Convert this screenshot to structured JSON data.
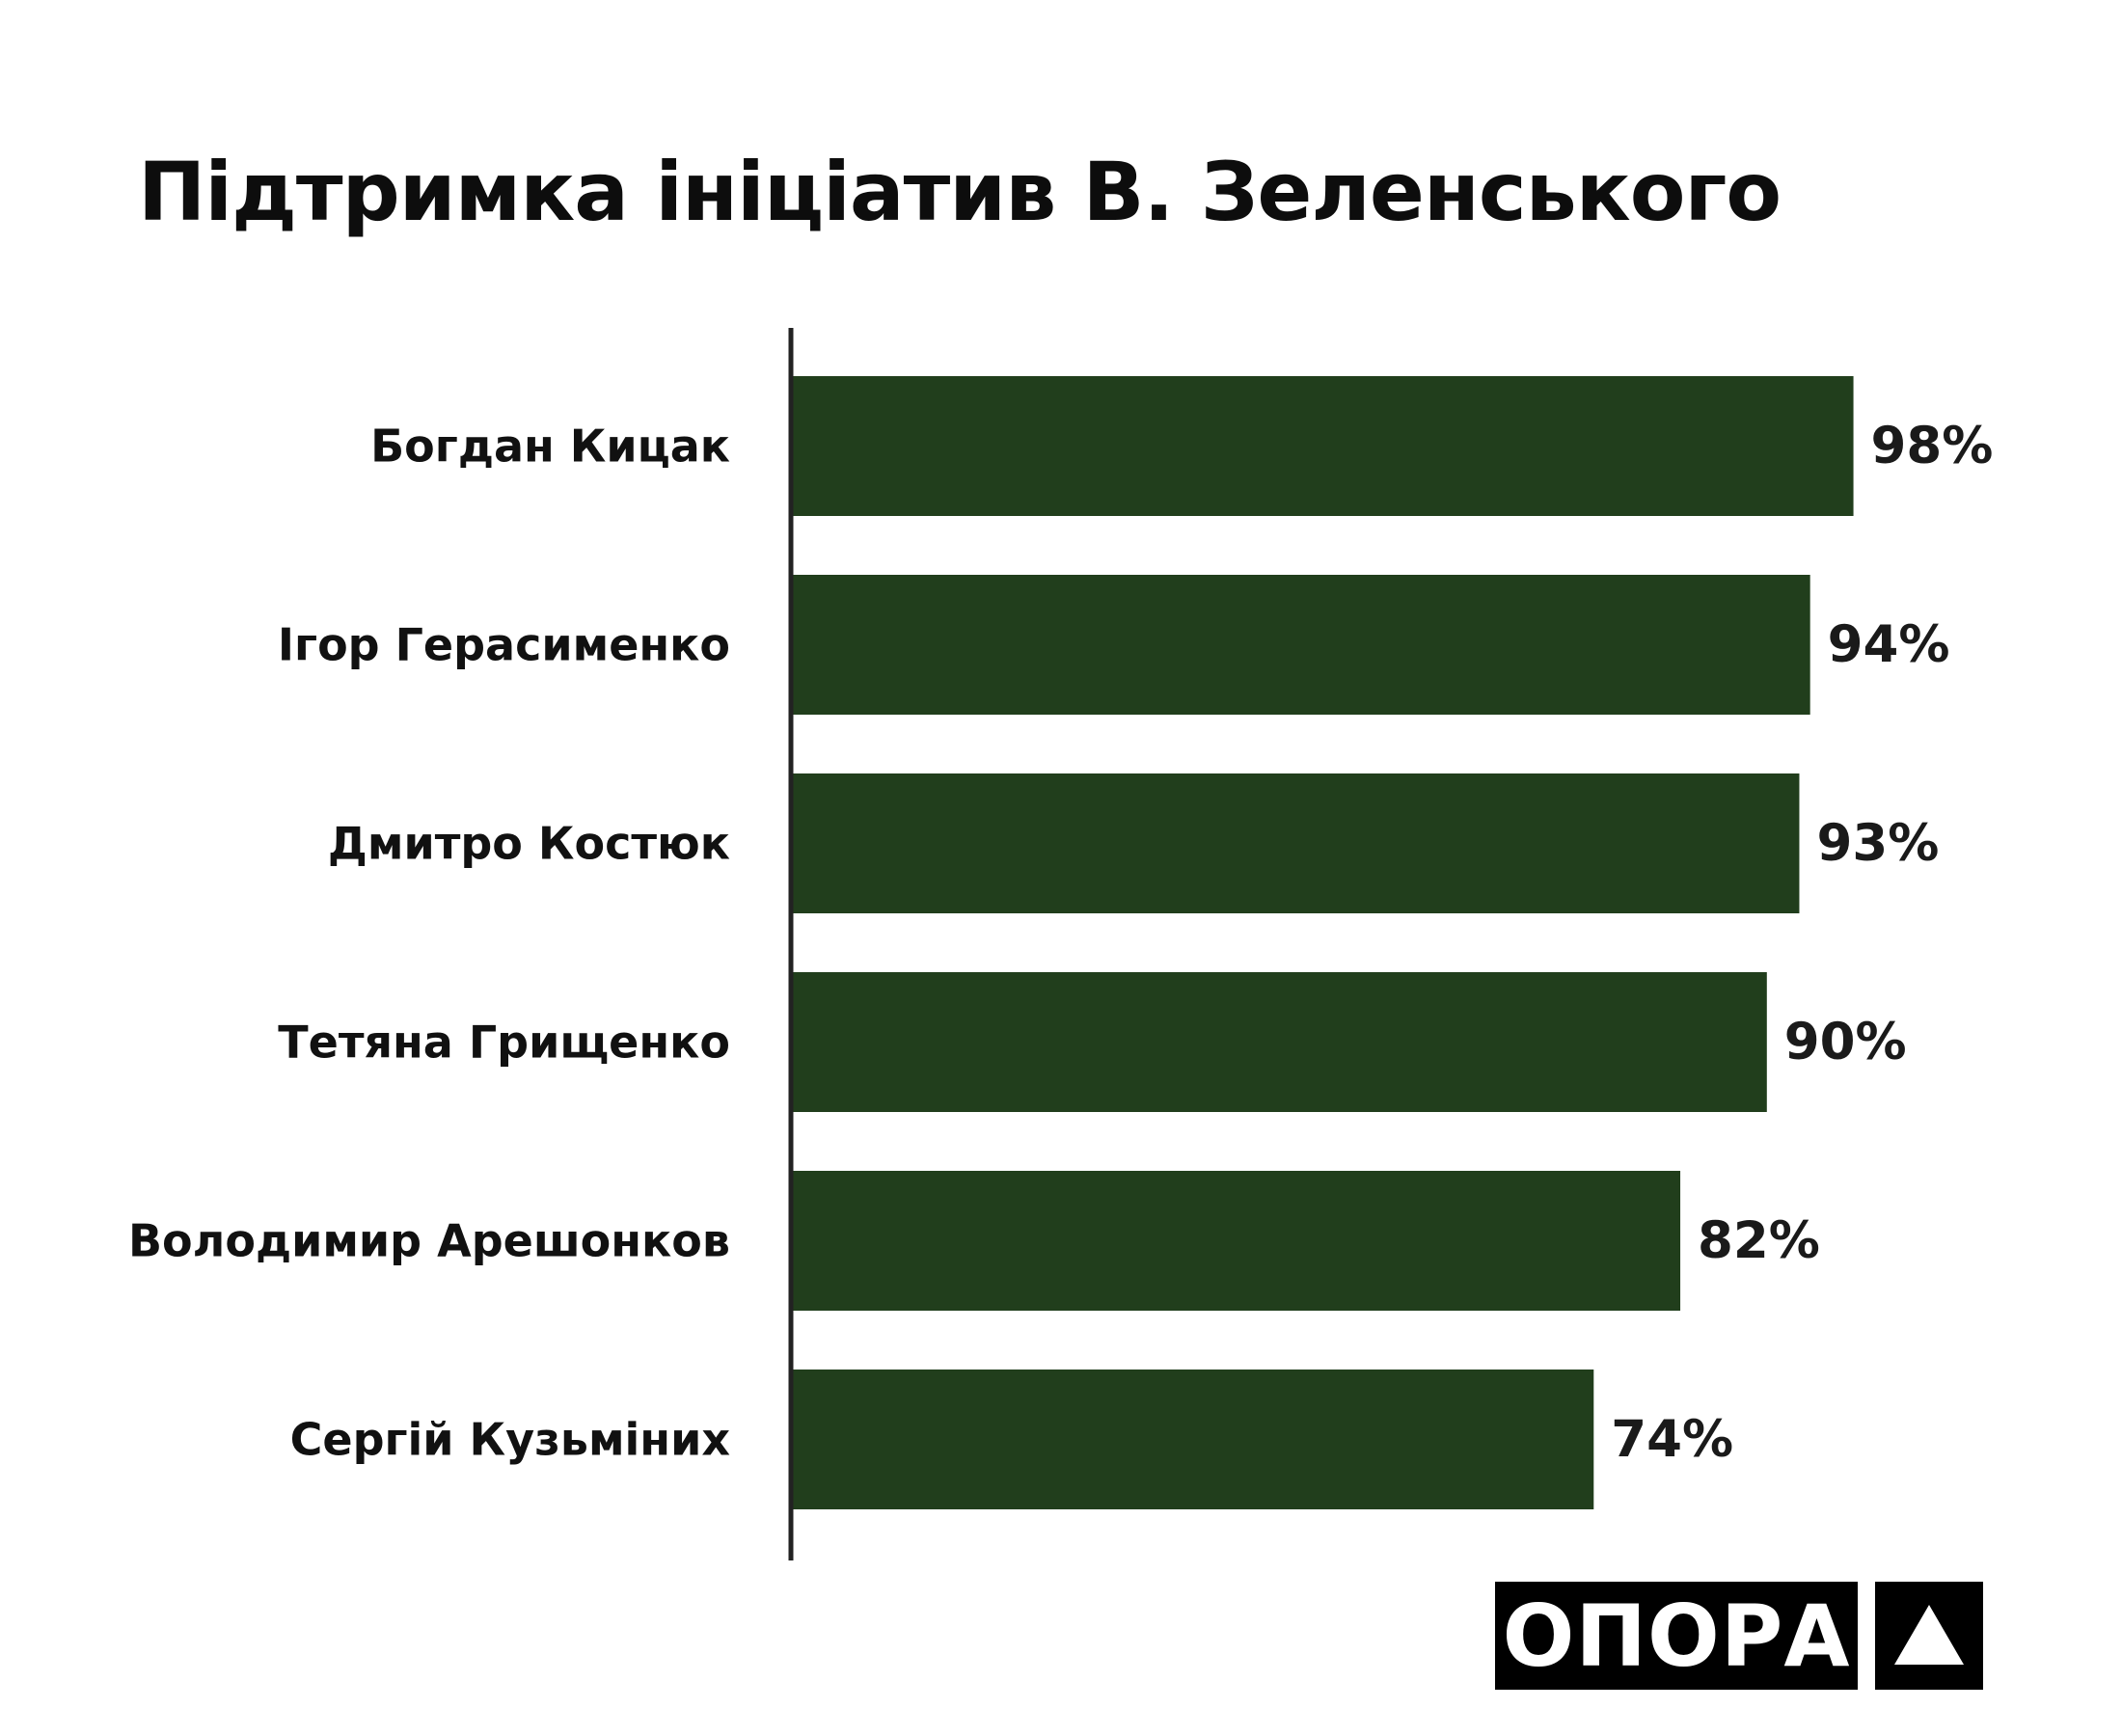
{
  "chart_data": {
    "type": "bar",
    "orientation": "horizontal",
    "title": "Підтримка ініціатив В. Зеленського",
    "categories": [
      "Богдан Кицак",
      "Ігор Герасименко",
      "Дмитро Костюк",
      "Тетяна Грищенко",
      "Володимир Арешонков",
      "Сергій Кузьміних"
    ],
    "values": [
      98,
      94,
      93,
      90,
      82,
      74
    ],
    "value_labels": [
      "98%",
      "94%",
      "93%",
      "90%",
      "82%",
      "74%"
    ],
    "xlim": [
      0,
      100
    ],
    "grid": false,
    "legend": "none",
    "bar_color": "#213e1c",
    "axis_color": "#222222"
  },
  "logo": {
    "text": "ОПОРА",
    "icon": "triangle-icon"
  }
}
